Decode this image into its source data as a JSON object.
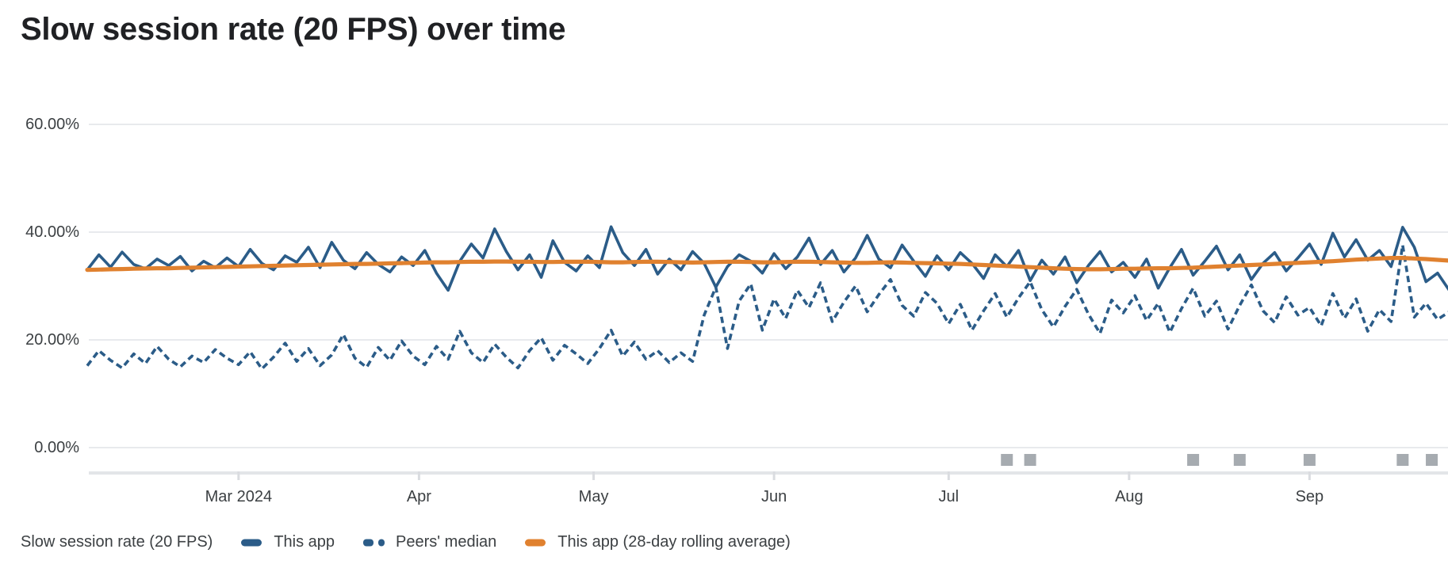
{
  "header": {
    "title": "Slow session rate (20 FPS) over time"
  },
  "colors": {
    "series_blue": "#2b5c88",
    "series_orange": "#e0812f",
    "gridline": "#e8eaed",
    "axis_baseline": "#e3e5e8",
    "axis_tick": "#dadce0",
    "release_marker": "#a6abb0",
    "text_primary": "#202124",
    "text_axis": "#3c4043"
  },
  "legend": {
    "caption": "Slow session rate (20 FPS)",
    "items": [
      {
        "label": "This app",
        "swatch": "solid",
        "color": "#2b5c88"
      },
      {
        "label": "Peers' median",
        "swatch": "dashed",
        "color": "#2b5c88"
      },
      {
        "label": "This app (28-day rolling average)",
        "swatch": "solid",
        "color": "#e0812f"
      }
    ]
  },
  "chart_data": {
    "type": "line",
    "title": "Slow session rate (20 FPS) over time",
    "unit": "%",
    "xlabel": "",
    "ylabel": "",
    "ylim": [
      0,
      60
    ],
    "grid": true,
    "legend_position": "bottom",
    "yticks": [
      {
        "label": "0.00%",
        "value": 0
      },
      {
        "label": "20.00%",
        "value": 20
      },
      {
        "label": "40.00%",
        "value": 40
      },
      {
        "label": "60.00%",
        "value": 60
      }
    ],
    "xticks": [
      {
        "label": "Mar 2024",
        "day": 26
      },
      {
        "label": "Apr",
        "day": 57
      },
      {
        "label": "May",
        "day": 87
      },
      {
        "label": "Jun",
        "day": 118
      },
      {
        "label": "Jul",
        "day": 148
      },
      {
        "label": "Aug",
        "day": 179
      },
      {
        "label": "Sep",
        "day": 210
      }
    ],
    "x_start_day": 0,
    "x_day_step": 2,
    "x_total_days": 235,
    "series": [
      {
        "id": "this-app",
        "name": "This app",
        "style": "solid",
        "color": "#2b5c88",
        "values": [
          33.0,
          35.8,
          33.5,
          36.3,
          34.0,
          33.2,
          35.0,
          33.8,
          35.5,
          32.8,
          34.6,
          33.4,
          35.2,
          33.6,
          36.8,
          34.2,
          33.0,
          35.6,
          34.4,
          37.2,
          33.4,
          38.1,
          34.8,
          33.2,
          36.2,
          34.0,
          32.6,
          35.4,
          33.8,
          36.6,
          32.4,
          29.2,
          34.6,
          37.8,
          35.2,
          40.6,
          36.4,
          33.0,
          35.8,
          31.6,
          38.4,
          34.4,
          32.8,
          35.6,
          33.4,
          41.0,
          36.2,
          33.8,
          36.8,
          32.2,
          35.0,
          33.0,
          36.4,
          34.2,
          29.8,
          33.6,
          35.8,
          34.6,
          32.4,
          36.0,
          33.2,
          35.4,
          38.9,
          34.0,
          36.6,
          32.6,
          35.2,
          39.4,
          35.0,
          33.4,
          37.6,
          34.6,
          31.8,
          35.6,
          33.0,
          36.2,
          34.2,
          31.4,
          35.8,
          33.6,
          36.6,
          31.0,
          34.8,
          32.2,
          35.4,
          30.6,
          33.8,
          36.4,
          32.6,
          34.4,
          31.6,
          35.0,
          29.6,
          33.4,
          36.8,
          32.0,
          34.6,
          37.4,
          33.0,
          35.8,
          31.2,
          34.2,
          36.2,
          32.8,
          35.2,
          37.8,
          34.0,
          39.8,
          35.4,
          38.6,
          34.8,
          36.6,
          33.6,
          40.9,
          37.2,
          30.8,
          32.4,
          29.2
        ]
      },
      {
        "id": "peers-median",
        "name": "Peers' median",
        "style": "dashed",
        "color": "#2b5c88",
        "values": [
          15.2,
          18.0,
          16.2,
          14.8,
          17.4,
          15.6,
          18.8,
          16.4,
          15.0,
          17.0,
          15.8,
          18.2,
          16.6,
          15.4,
          17.8,
          14.6,
          16.8,
          19.4,
          16.0,
          18.4,
          15.2,
          17.2,
          21.0,
          16.6,
          14.9,
          18.6,
          16.2,
          19.8,
          17.0,
          15.4,
          18.8,
          16.4,
          21.6,
          17.6,
          15.8,
          19.2,
          16.8,
          14.8,
          18.0,
          20.4,
          16.2,
          19.0,
          17.4,
          15.6,
          18.4,
          21.8,
          17.0,
          19.6,
          16.4,
          18.0,
          15.8,
          17.6,
          16.0,
          24.6,
          29.8,
          18.4,
          27.2,
          30.4,
          21.8,
          27.6,
          24.0,
          29.2,
          26.0,
          30.6,
          23.4,
          27.0,
          30.0,
          25.2,
          28.4,
          31.2,
          26.4,
          24.4,
          28.8,
          26.8,
          23.0,
          26.6,
          21.8,
          25.4,
          28.6,
          24.2,
          27.8,
          30.8,
          25.6,
          22.4,
          26.2,
          29.4,
          24.8,
          21.2,
          27.4,
          25.0,
          28.2,
          23.6,
          26.8,
          21.4,
          25.8,
          29.6,
          24.4,
          27.2,
          22.0,
          26.4,
          30.2,
          25.4,
          23.2,
          28.0,
          24.6,
          26.0,
          22.6,
          28.6,
          24.0,
          27.6,
          21.6,
          25.6,
          23.4,
          37.6,
          24.2,
          26.8,
          23.8,
          25.2
        ]
      },
      {
        "id": "rolling-average",
        "name": "This app (28-day rolling average)",
        "style": "average",
        "color": "#e0812f",
        "values": [
          33.0,
          33.05,
          33.1,
          33.15,
          33.2,
          33.25,
          33.3,
          33.3,
          33.35,
          33.4,
          33.45,
          33.5,
          33.55,
          33.6,
          33.65,
          33.7,
          33.75,
          33.8,
          33.85,
          33.9,
          33.95,
          34.0,
          34.05,
          34.1,
          34.1,
          34.15,
          34.2,
          34.25,
          34.3,
          34.35,
          34.4,
          34.4,
          34.45,
          34.5,
          34.5,
          34.55,
          34.55,
          34.5,
          34.5,
          34.45,
          34.45,
          34.5,
          34.5,
          34.5,
          34.45,
          34.4,
          34.4,
          34.45,
          34.5,
          34.5,
          34.45,
          34.4,
          34.35,
          34.4,
          34.45,
          34.5,
          34.5,
          34.45,
          34.4,
          34.4,
          34.45,
          34.5,
          34.5,
          34.45,
          34.4,
          34.35,
          34.3,
          34.3,
          34.35,
          34.4,
          34.35,
          34.3,
          34.25,
          34.2,
          34.15,
          34.1,
          34.0,
          33.9,
          33.8,
          33.7,
          33.6,
          33.5,
          33.4,
          33.3,
          33.2,
          33.15,
          33.1,
          33.1,
          33.15,
          33.2,
          33.2,
          33.25,
          33.3,
          33.3,
          33.35,
          33.4,
          33.5,
          33.6,
          33.7,
          33.8,
          33.9,
          34.0,
          34.1,
          34.2,
          34.3,
          34.4,
          34.5,
          34.6,
          34.75,
          34.9,
          35.0,
          35.1,
          35.2,
          35.2,
          35.1,
          35.0,
          34.85,
          34.7
        ]
      }
    ],
    "release_markers": {
      "color": "#a6abb0",
      "days": [
        158,
        162,
        190,
        198,
        210,
        226,
        231
      ]
    }
  }
}
